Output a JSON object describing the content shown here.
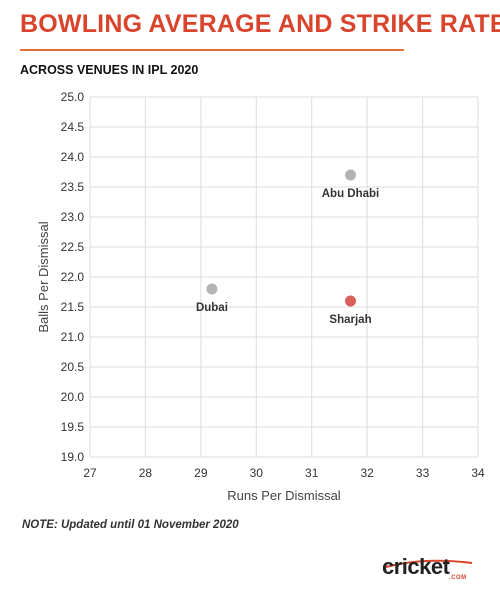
{
  "header": {
    "title": "BOWLING AVERAGE AND STRIKE RATE",
    "subtitle": "ACROSS VENUES IN IPL 2020"
  },
  "footer": {
    "note": "NOTE: Updated until 01 November 2020"
  },
  "logo": {
    "word": "cricket",
    "sub": ".COM"
  },
  "colors": {
    "title": "#d9442c",
    "rule": "#e2703a",
    "point_default": "#b3b3b3",
    "point_highlight": "#d9605a",
    "grid": "#dddddd"
  },
  "chart_data": {
    "type": "scatter",
    "xlabel": "Runs Per Dismissal",
    "ylabel": "Balls Per Dismissal",
    "xlim": [
      27,
      34
    ],
    "ylim": [
      19.0,
      25.0
    ],
    "x_ticks": [
      "27",
      "28",
      "29",
      "30",
      "31",
      "32",
      "33",
      "34"
    ],
    "y_ticks": [
      "19.0",
      "19.5",
      "20.0",
      "20.5",
      "21.0",
      "21.5",
      "22.0",
      "22.5",
      "23.0",
      "23.5",
      "24.0",
      "24.5",
      "25.0"
    ],
    "grid": true,
    "points": [
      {
        "label": "Abu Dhabi",
        "x": 31.7,
        "y": 23.7,
        "highlight": false
      },
      {
        "label": "Dubai",
        "x": 29.2,
        "y": 21.8,
        "highlight": false
      },
      {
        "label": "Sharjah",
        "x": 31.7,
        "y": 21.6,
        "highlight": true
      }
    ]
  }
}
